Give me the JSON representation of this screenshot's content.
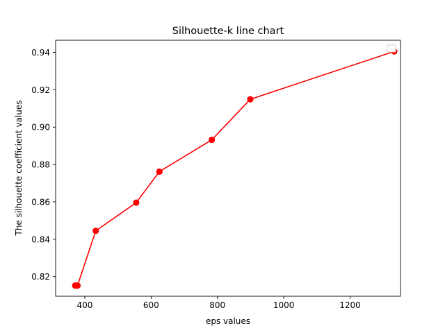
{
  "chart_data": {
    "type": "line",
    "title": "Silhouette-k line chart",
    "xlabel": "eps values",
    "ylabel": "The silhouette coefficient values",
    "xlim": [
      312,
      1352
    ],
    "ylim": [
      0.8095,
      0.9465
    ],
    "xticks": [
      400,
      600,
      800,
      1000,
      1200
    ],
    "xtick_labels": [
      "400",
      "600",
      "800",
      "1000",
      "1200"
    ],
    "yticks": [
      0.82,
      0.84,
      0.86,
      0.88,
      0.9,
      0.92,
      0.94
    ],
    "ytick_labels": [
      "0.82",
      "0.84",
      "0.86",
      "0.88",
      "0.90",
      "0.92",
      "0.94"
    ],
    "grid": false,
    "legend": {
      "placement": "top-right",
      "entries": []
    },
    "series": [
      {
        "color": "#ff0000",
        "marker": "circle",
        "x": [
          371,
          378,
          433,
          555,
          625,
          783,
          899,
          1333
        ],
        "y": [
          0.8152,
          0.8152,
          0.8445,
          0.8596,
          0.8762,
          0.8932,
          0.9149,
          0.9405
        ]
      }
    ]
  }
}
